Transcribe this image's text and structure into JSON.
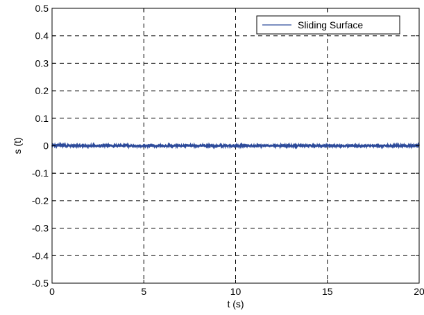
{
  "chart_data": {
    "type": "line",
    "title": "",
    "xlabel": "t (s)",
    "ylabel": "s (t)",
    "xlim": [
      0,
      20
    ],
    "ylim": [
      -0.5,
      0.5
    ],
    "xticks": [
      0,
      5,
      10,
      15,
      20
    ],
    "yticks": [
      0.5,
      0.4,
      0.3,
      0.2,
      0.1,
      0,
      -0.1,
      -0.2,
      -0.3,
      -0.4,
      -0.5
    ],
    "xtick_labels": [
      "0",
      "5",
      "10",
      "15",
      "20"
    ],
    "ytick_labels": [
      "0.5",
      "0.4",
      "0.3",
      "0.2",
      "0.1",
      "0",
      "-0.1",
      "-0.2",
      "-0.3",
      "-0.4",
      "-0.5"
    ],
    "grid": true,
    "grid_style": "dashed",
    "legend_position": "top-right",
    "series": [
      {
        "name": "Sliding Surface",
        "color": "#2c4a9a",
        "x": [
          0,
          0.5,
          1,
          2,
          3,
          4,
          5,
          6,
          7,
          8,
          9,
          10,
          11,
          12,
          13,
          14,
          15,
          16,
          17,
          18,
          19,
          20
        ],
        "y": [
          0,
          0.002,
          0,
          0,
          0,
          0,
          0,
          0,
          0,
          0,
          0,
          0,
          0,
          0,
          0,
          0,
          0,
          0,
          0,
          0,
          0,
          0
        ],
        "noise_amplitude": 0.003
      }
    ]
  }
}
